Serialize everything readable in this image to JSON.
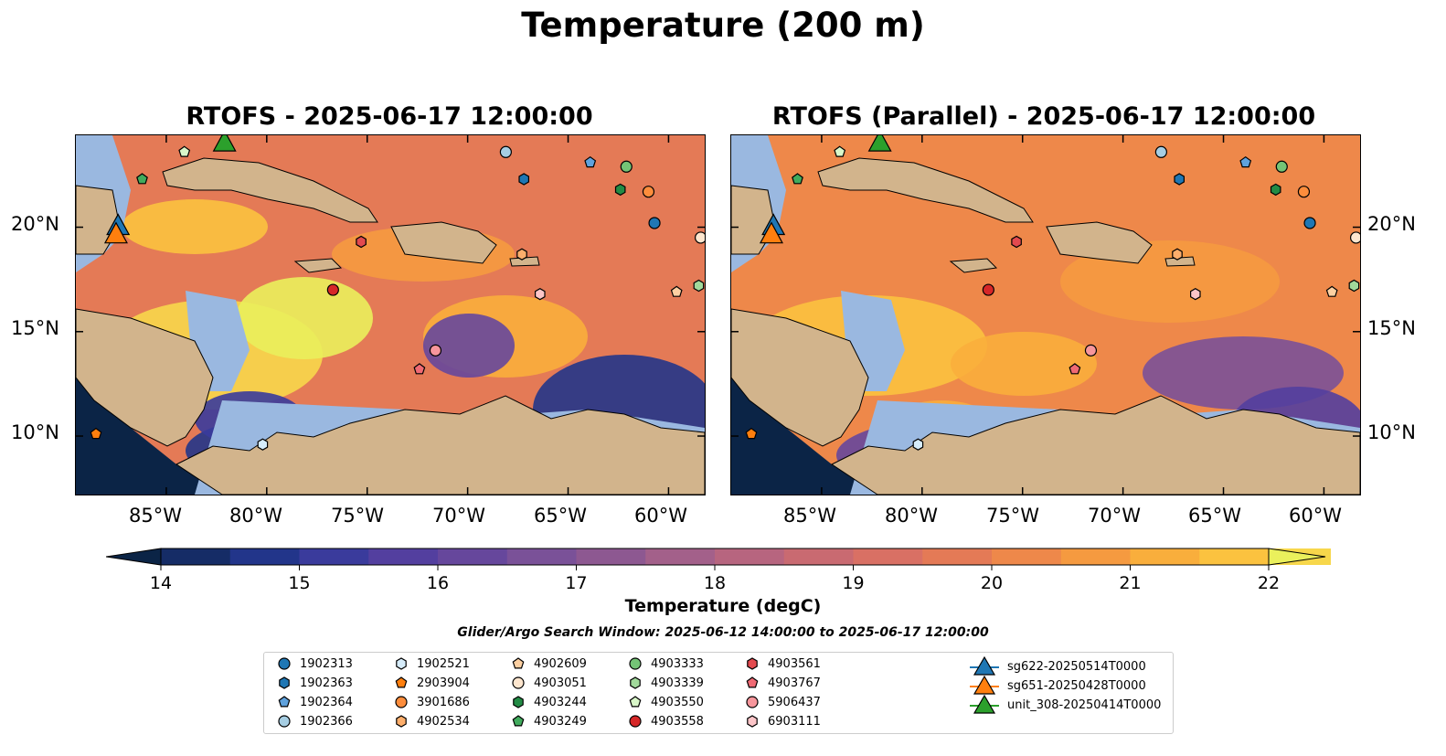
{
  "suptitle": "Temperature (200 m)",
  "chart_data": [
    {
      "type": "heatmap",
      "title": "RTOFS - 2025-06-17 12:00:00",
      "xlim": [
        -89.5,
        -58.2
      ],
      "ylim": [
        7.2,
        24.4
      ],
      "xticks": [
        "85°W",
        "80°W",
        "75°W",
        "70°W",
        "65°W",
        "60°W"
      ],
      "yticks": [
        "20°N",
        "15°N",
        "10°N"
      ]
    },
    {
      "type": "heatmap",
      "title": "RTOFS (Parallel) - 2025-06-17 12:00:00",
      "xlim": [
        -89.5,
        -58.2
      ],
      "ylim": [
        7.2,
        24.4
      ],
      "xticks": [
        "85°W",
        "80°W",
        "75°W",
        "70°W",
        "65°W",
        "60°W"
      ],
      "yticks": [
        "20°N",
        "15°N",
        "10°N"
      ]
    }
  ],
  "colorbar": {
    "label": "Temperature (degC)",
    "vmin": 14,
    "vmax": 22,
    "ticks": [
      "14",
      "15",
      "16",
      "17",
      "18",
      "19",
      "20",
      "21",
      "22"
    ],
    "colors": [
      "#0b2446",
      "#152c66",
      "#22358a",
      "#3a3b9c",
      "#533f9f",
      "#66479c",
      "#7a5198",
      "#8d5891",
      "#a3608a",
      "#b7657f",
      "#c96a71",
      "#d97064",
      "#e47a56",
      "#ee884a",
      "#f59a40",
      "#f9ae3c",
      "#fbc23f",
      "#f7d74b",
      "#eaf05c"
    ]
  },
  "window_note": "Glider/Argo Search Window: 2025-06-12 14:00:00 to 2025-06-17 12:00:00",
  "legend": [
    {
      "label": "1902313",
      "shape": "circle",
      "color": "#1f77b4"
    },
    {
      "label": "1902363",
      "shape": "hexagon",
      "color": "#1f77b4"
    },
    {
      "label": "1902364",
      "shape": "pentagon",
      "color": "#5fa2dd"
    },
    {
      "label": "1902366",
      "shape": "circle",
      "color": "#a6cee3"
    },
    {
      "label": "1902521",
      "shape": "hexagon",
      "color": "#d6ecfa"
    },
    {
      "label": "2903904",
      "shape": "pentagon",
      "color": "#ff7f0e"
    },
    {
      "label": "3901686",
      "shape": "circle",
      "color": "#fd8d3c"
    },
    {
      "label": "4902534",
      "shape": "hexagon",
      "color": "#fdae6b"
    },
    {
      "label": "4902609",
      "shape": "pentagon",
      "color": "#fdd0a2"
    },
    {
      "label": "4903051",
      "shape": "circle",
      "color": "#fee6ce"
    },
    {
      "label": "4903244",
      "shape": "hexagon",
      "color": "#238b45"
    },
    {
      "label": "4903249",
      "shape": "pentagon",
      "color": "#41ab5d"
    },
    {
      "label": "4903333",
      "shape": "circle",
      "color": "#74c476"
    },
    {
      "label": "4903339",
      "shape": "hexagon",
      "color": "#a1d99b"
    },
    {
      "label": "4903550",
      "shape": "pentagon",
      "color": "#d9f7c9"
    },
    {
      "label": "4903558",
      "shape": "circle",
      "color": "#d62728"
    },
    {
      "label": "4903561",
      "shape": "hexagon",
      "color": "#e34a4f"
    },
    {
      "label": "4903767",
      "shape": "pentagon",
      "color": "#f06a74"
    },
    {
      "label": "5906437",
      "shape": "circle",
      "color": "#f7969c"
    },
    {
      "label": "6903111",
      "shape": "hexagon",
      "color": "#fcc5c8"
    },
    {
      "label": "sg622-20250514T0000",
      "shape": "triangle",
      "color": "#1f77b4"
    },
    {
      "label": "sg651-20250428T0000",
      "shape": "triangle",
      "color": "#ff7f0e"
    },
    {
      "label": "unit_308-20250414T0000",
      "shape": "triangle",
      "color": "#2ca02c"
    }
  ],
  "floats": [
    {
      "id": "1902313",
      "lon": -60.7,
      "lat": 20.2
    },
    {
      "id": "1902363",
      "lon": -67.2,
      "lat": 22.3
    },
    {
      "id": "1902364",
      "lon": -63.9,
      "lat": 23.1
    },
    {
      "id": "1902366",
      "lon": -68.1,
      "lat": 23.6
    },
    {
      "id": "1902521",
      "lon": -80.2,
      "lat": 9.6
    },
    {
      "id": "2903904",
      "lon": -88.5,
      "lat": 10.1
    },
    {
      "id": "3901686",
      "lon": -61.0,
      "lat": 21.7
    },
    {
      "id": "4902534",
      "lon": -67.3,
      "lat": 18.7
    },
    {
      "id": "4902609",
      "lon": -59.6,
      "lat": 16.9
    },
    {
      "id": "4903051",
      "lon": -58.4,
      "lat": 19.5
    },
    {
      "id": "4903244",
      "lon": -62.4,
      "lat": 21.8
    },
    {
      "id": "4903249",
      "lon": -86.2,
      "lat": 22.3
    },
    {
      "id": "4903333",
      "lon": -62.1,
      "lat": 22.9
    },
    {
      "id": "4903339",
      "lon": -58.5,
      "lat": 17.2
    },
    {
      "id": "4903550",
      "lon": -84.1,
      "lat": 23.6
    },
    {
      "id": "4903558",
      "lon": -76.7,
      "lat": 17.0
    },
    {
      "id": "4903561",
      "lon": -75.3,
      "lat": 19.3
    },
    {
      "id": "4903767",
      "lon": -72.4,
      "lat": 13.2
    },
    {
      "id": "5906437",
      "lon": -71.6,
      "lat": 14.1
    },
    {
      "id": "6903111",
      "lon": -66.4,
      "lat": 16.8
    }
  ],
  "gliders": [
    {
      "id": "sg622-20250514T0000",
      "lon": -87.4,
      "lat": 20.0
    },
    {
      "id": "sg651-20250428T0000",
      "lon": -87.5,
      "lat": 19.6
    },
    {
      "id": "unit_308-20250414T0000",
      "lon": -82.1,
      "lat": 24.0
    }
  ]
}
